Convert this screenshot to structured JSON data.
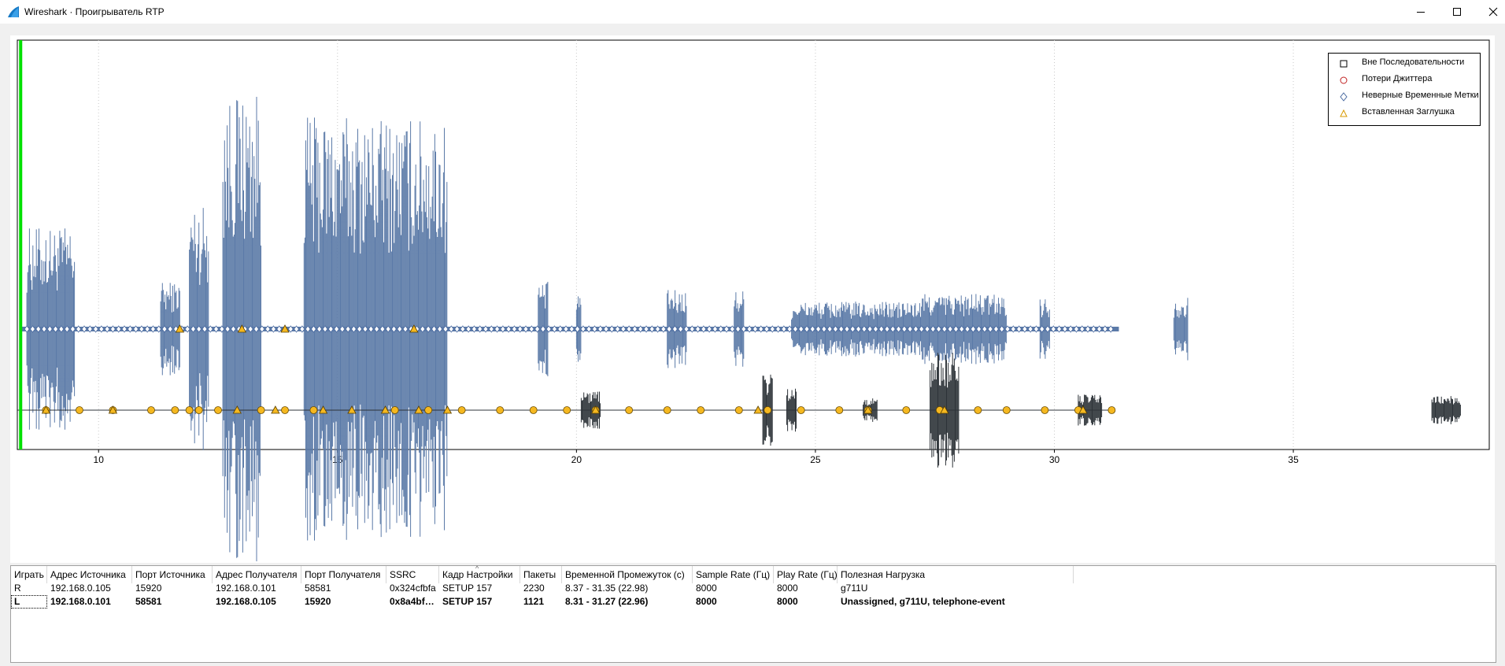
{
  "window": {
    "title": "Wireshark · Проигрыватель RTP",
    "icon": "wireshark-fin-icon",
    "controls": [
      "minimize-icon",
      "maximize-icon",
      "close-icon"
    ]
  },
  "colors": {
    "waveform_right": "#5b7aa8",
    "waveform_left": "#2d3338",
    "playhead": "#00e000",
    "marker_fill": "#f5b820",
    "diamond_stroke": "#4a6aa0",
    "jitter_stroke": "#c02020"
  },
  "legend": [
    {
      "symbol": "square",
      "label": "Вне Последовательности"
    },
    {
      "symbol": "circle",
      "label": "Потери Джиттера"
    },
    {
      "symbol": "diamond",
      "label": "Неверные Временные Метки"
    },
    {
      "symbol": "triangle",
      "label": "Вставленная Заглушка"
    }
  ],
  "chart_data": {
    "type": "line",
    "x_ticks": [
      "10",
      "15",
      "20",
      "25",
      "30",
      "35"
    ],
    "xlim": [
      8.3,
      39.1
    ],
    "grid": "vertical dotted",
    "legend_position": "top-right",
    "playhead_position_s": 8.37,
    "series": [
      {
        "name": "R",
        "time_span": [
          8.37,
          31.35
        ],
        "segments": [
          [
            8.5,
            9.5
          ],
          [
            11.3,
            11.7
          ],
          [
            11.9,
            12.3
          ],
          [
            12.6,
            13.4
          ],
          [
            14.3,
            17.3
          ],
          [
            19.2,
            19.4
          ],
          [
            20.0,
            20.1
          ],
          [
            21.9,
            22.3
          ],
          [
            23.3,
            23.5
          ],
          [
            24.5,
            29.0
          ],
          [
            29.7,
            29.9
          ],
          [
            32.5,
            32.8
          ]
        ],
        "markers": {
          "diamond": [
            8.5,
            31.3
          ],
          "triangle": [
            11.7,
            13.0,
            13.9,
            16.6
          ]
        }
      },
      {
        "name": "L",
        "time_span": [
          8.31,
          31.27
        ],
        "segments": [
          [
            20.1,
            20.5
          ],
          [
            23.9,
            24.1
          ],
          [
            24.4,
            24.6
          ],
          [
            26.0,
            26.3
          ],
          [
            27.4,
            28.0
          ],
          [
            30.5,
            31.0
          ],
          [
            37.9,
            38.5
          ]
        ],
        "markers": {
          "circle": [
            8.9,
            9.6,
            10.3,
            11.1,
            11.6,
            11.9,
            12.1,
            12.5,
            13.4,
            13.9,
            14.5,
            16.2,
            16.9,
            17.6,
            18.4,
            19.1,
            19.8,
            20.4,
            21.1,
            21.9,
            22.6,
            23.4,
            24.0,
            24.7,
            25.5,
            26.1,
            26.9,
            27.6,
            28.4,
            29.0,
            29.8,
            30.5,
            31.2
          ],
          "triangle": [
            8.9,
            10.3,
            12.9,
            13.7,
            14.7,
            15.3,
            16.0,
            16.7,
            17.3,
            20.4,
            23.8,
            26.1,
            27.7,
            30.6
          ]
        }
      }
    ]
  },
  "table": {
    "columns": [
      "Играть",
      "Адрес Источника",
      "Порт Источника",
      "Адрес Получателя",
      "Порт Получателя",
      "SSRC",
      "Кадр Настройки",
      "Пакеты",
      "Временной Промежуток (с)",
      "Sample Rate (Гц)",
      "Play Rate (Гц)",
      "Полезная Нагрузка"
    ],
    "rows": [
      [
        "R",
        "192.168.0.105",
        "15920",
        "192.168.0.101",
        "58581",
        "0x324cfbfa",
        "SETUP 157",
        "2230",
        "8.37 - 31.35 (22.98)",
        "8000",
        "8000",
        "g711U"
      ],
      [
        "L",
        "192.168.0.101",
        "58581",
        "192.168.0.105",
        "15920",
        "0x8a4bf…",
        "SETUP 157",
        "1121",
        "8.31 - 31.27 (22.96)",
        "8000",
        "8000",
        "Unassigned, g711U, telephone-event"
      ]
    ],
    "sort_indicator": "^"
  }
}
